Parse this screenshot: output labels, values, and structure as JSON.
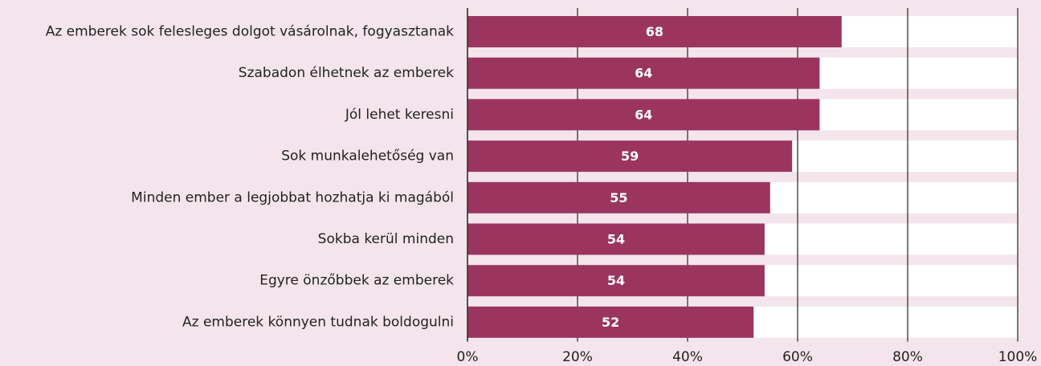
{
  "chart_data": {
    "type": "bar",
    "orientation": "horizontal",
    "categories": [
      "Az emberek sok felesleges dolgot vásárolnak, fogyasztanak",
      "Szabadon élhetnek az emberek",
      "Jól lehet keresni",
      "Sok munkalehetőség van",
      "Minden ember a legjobbat hozhatja ki magából",
      "Sokba kerül minden",
      "Egyre önzőbbek az emberek",
      "Az emberek könnyen tudnak boldogulni"
    ],
    "values": [
      68,
      64,
      64,
      59,
      55,
      54,
      54,
      52
    ],
    "color": "#9b3560",
    "xlim": [
      0,
      100
    ],
    "xticks": [
      {
        "value": 0,
        "label": "0%"
      },
      {
        "value": 20,
        "label": "20%"
      },
      {
        "value": 40,
        "label": "40%"
      },
      {
        "value": 60,
        "label": "60%"
      },
      {
        "value": 80,
        "label": "80%"
      },
      {
        "value": 100,
        "label": "100%"
      }
    ],
    "grid": true
  }
}
